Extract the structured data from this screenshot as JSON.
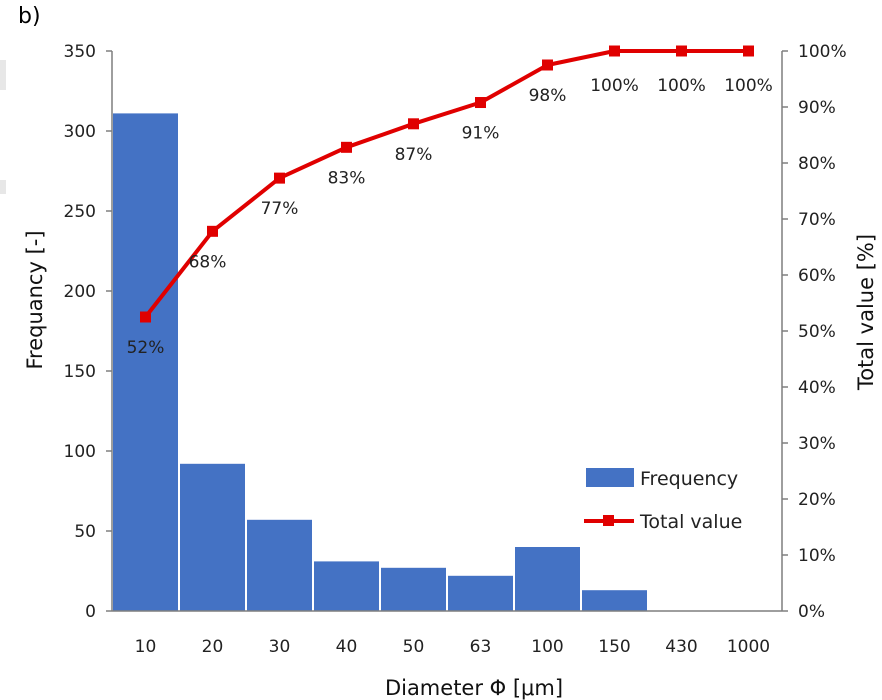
{
  "panel_label": "b)",
  "colors": {
    "bar": "#4472c4",
    "line": "#e00000",
    "axis": "#7f7f7f"
  },
  "chart_data": {
    "type": "bar",
    "categories": [
      "10",
      "20",
      "30",
      "40",
      "50",
      "63",
      "100",
      "150",
      "430",
      "1000"
    ],
    "series": [
      {
        "name": "Frequency",
        "type": "bar",
        "axis": "left",
        "values": [
          311,
          92,
          57,
          31,
          27,
          22,
          40,
          13,
          0,
          0
        ]
      },
      {
        "name": "Total value",
        "type": "line",
        "axis": "right",
        "values": [
          52.5,
          67.8,
          77.3,
          82.8,
          87.0,
          90.8,
          97.5,
          100,
          100,
          100
        ],
        "labels": [
          "52%",
          "68%",
          "77%",
          "83%",
          "87%",
          "91%",
          "98%",
          "100%",
          "100%",
          "100%"
        ]
      }
    ],
    "xlabel": "Diameter Φ [μm]",
    "ylabel": "Frequancy  [-]",
    "y2label": "Total value [%]",
    "ylim": [
      0,
      350
    ],
    "y2lim": [
      0,
      100
    ],
    "yticks": [
      "0",
      "50",
      "100",
      "150",
      "200",
      "250",
      "300",
      "350"
    ],
    "y2ticks": [
      "0%",
      "10%",
      "20%",
      "30%",
      "40%",
      "50%",
      "60%",
      "70%",
      "80%",
      "90%",
      "100%"
    ],
    "legend": {
      "position": "right",
      "entries": [
        "Frequency",
        "Total value"
      ]
    },
    "grid": false
  }
}
